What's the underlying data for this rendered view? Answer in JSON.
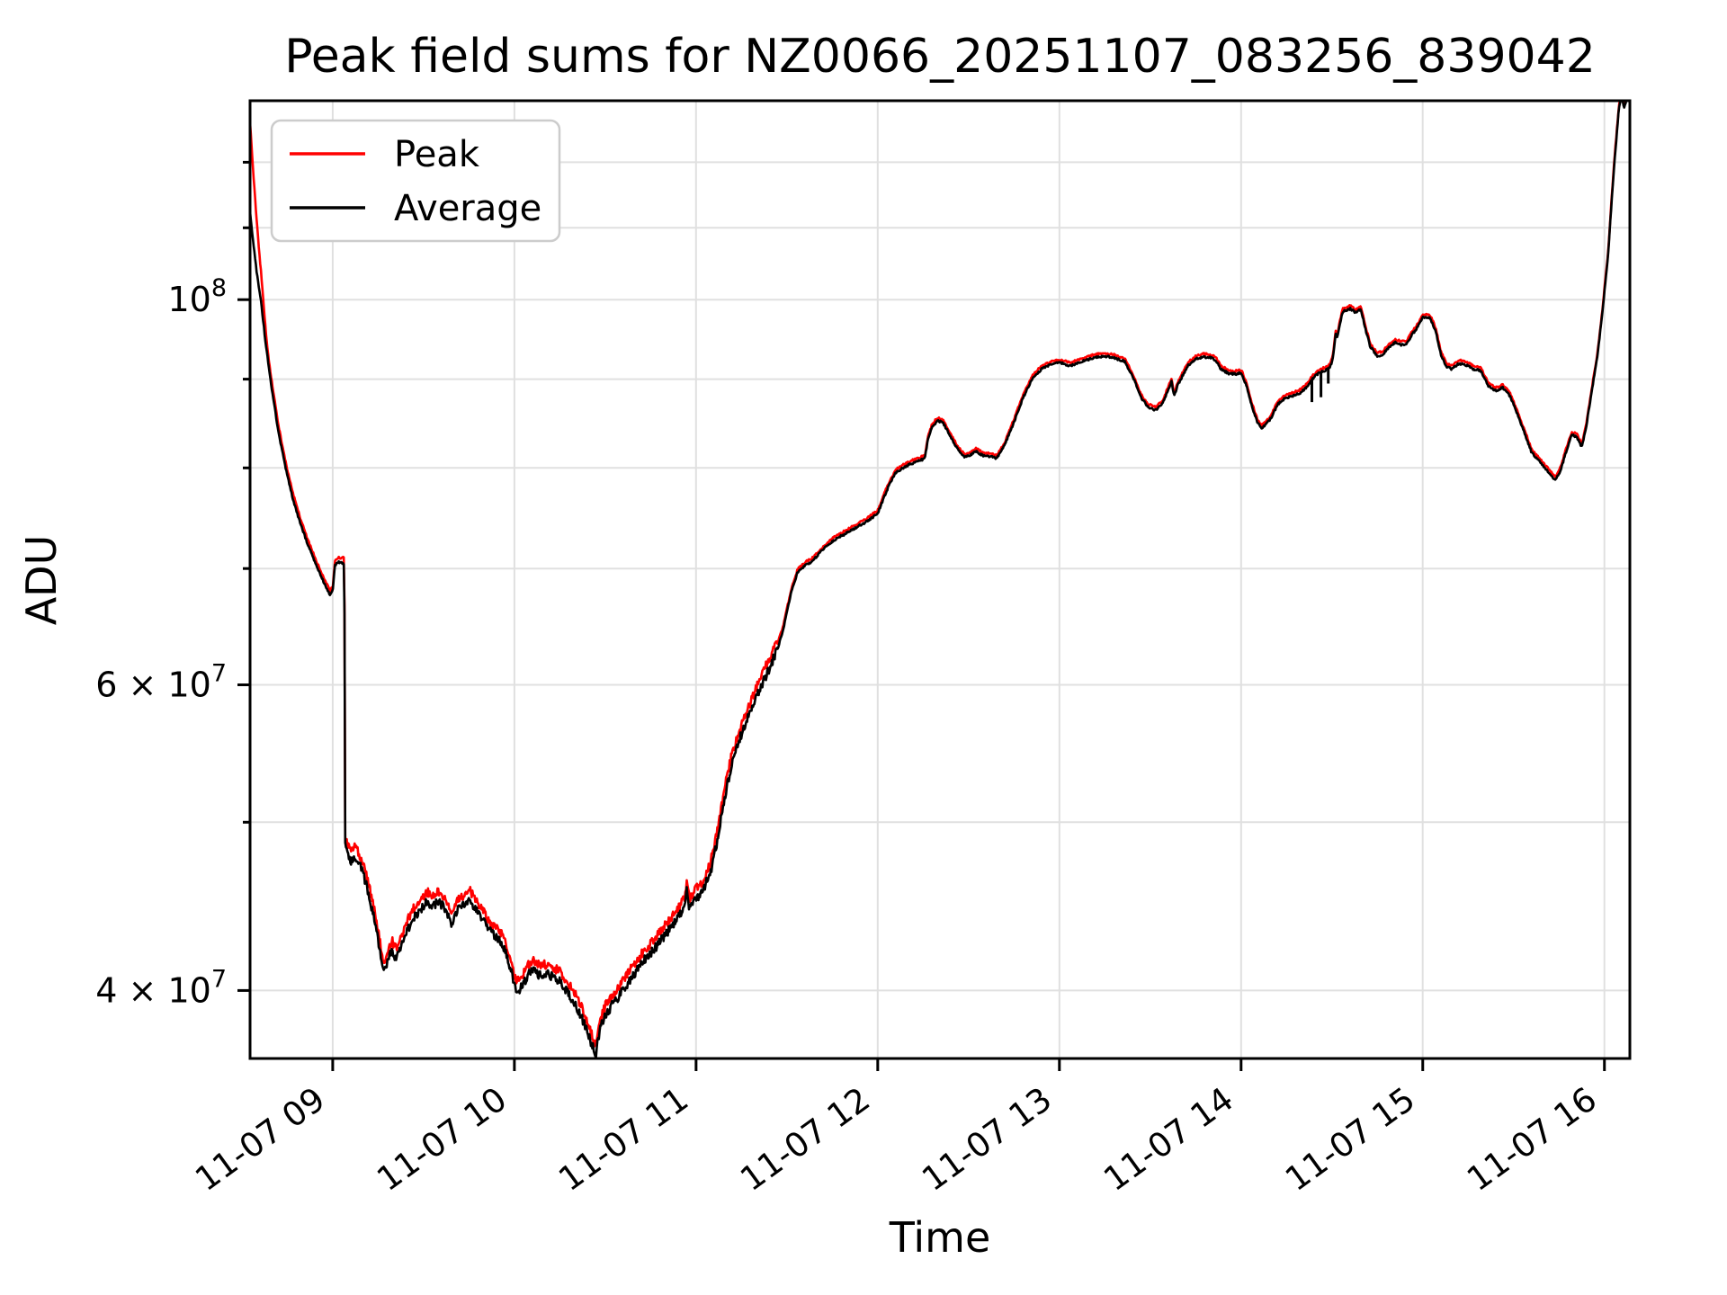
{
  "title": "Peak field sums for NZ0066_20251107_083256_839042",
  "xlabel": "Time",
  "ylabel": "ADU",
  "legend": {
    "items": [
      {
        "label": "Peak",
        "color": "#ff0000"
      },
      {
        "label": "Average",
        "color": "#000000"
      }
    ]
  },
  "colors": {
    "background": "#ffffff",
    "grid": "#e0e0e0",
    "spine": "#000000",
    "legend_border": "#cccccc",
    "peak_line": "#ff0000",
    "average_line": "#000000"
  },
  "chart_data": {
    "type": "line",
    "title": "Peak field sums for NZ0066_20251107_083256_839042",
    "xlabel": "Time",
    "ylabel": "ADU",
    "yscale": "log",
    "grid": true,
    "legend_position": "upper-left",
    "ylim": [
      36550000.0,
      130200000.0
    ],
    "xlim_hours": [
      8.545,
      16.14
    ],
    "value_unit": 10000000.0,
    "sample_step_hours": 0.004,
    "x_ticks": [
      {
        "hour": 9,
        "label": "11-07 09"
      },
      {
        "hour": 10,
        "label": "11-07 10"
      },
      {
        "hour": 11,
        "label": "11-07 11"
      },
      {
        "hour": 12,
        "label": "11-07 12"
      },
      {
        "hour": 13,
        "label": "11-07 13"
      },
      {
        "hour": 14,
        "label": "11-07 14"
      },
      {
        "hour": 15,
        "label": "11-07 15"
      },
      {
        "hour": 16,
        "label": "11-07 16"
      }
    ],
    "y_ticks": [
      {
        "value": 40000000.0,
        "labeled": true,
        "base": "4 × 10",
        "exp": "7"
      },
      {
        "value": 50000000.0,
        "labeled": false
      },
      {
        "value": 60000000.0,
        "labeled": true,
        "base": "6 × 10",
        "exp": "7"
      },
      {
        "value": 70000000.0,
        "labeled": false
      },
      {
        "value": 80000000.0,
        "labeled": false
      },
      {
        "value": 90000000.0,
        "labeled": false
      },
      {
        "value": 100000000.0,
        "labeled": true,
        "base": "10",
        "exp": "8"
      },
      {
        "value": 110000000.0,
        "labeled": false
      },
      {
        "value": 120000000.0,
        "labeled": false
      }
    ],
    "noise": {
      "window": [
        9.068,
        11.45
      ],
      "amp_in_window": 0.006,
      "amp_base": 0.0014
    },
    "series": [
      {
        "name": "Peak",
        "color": "#ff0000",
        "derived": "average_times_factor",
        "factor_table": [
          [
            8.545,
            1.125
          ],
          [
            8.595,
            1.05
          ],
          [
            8.64,
            1.01
          ],
          [
            8.9,
            1.006
          ],
          [
            9.05,
            1.006
          ],
          [
            9.075,
            1.013
          ],
          [
            11.4,
            1.013
          ],
          [
            11.5,
            1.004
          ],
          [
            16.2,
            1.004
          ]
        ]
      },
      {
        "name": "Average",
        "color": "#000000",
        "points": [
          [
            8.545,
            11.25
          ],
          [
            8.56,
            10.85
          ],
          [
            8.58,
            10.4
          ],
          [
            8.604,
            10.0
          ],
          [
            8.63,
            9.45
          ],
          [
            8.66,
            8.95
          ],
          [
            8.7,
            8.4
          ],
          [
            8.74,
            8.0
          ],
          [
            8.78,
            7.68
          ],
          [
            8.82,
            7.44
          ],
          [
            8.86,
            7.24
          ],
          [
            8.9,
            7.07
          ],
          [
            8.93,
            6.95
          ],
          [
            8.96,
            6.84
          ],
          [
            8.985,
            6.76
          ],
          [
            9.0,
            6.79
          ],
          [
            9.012,
            7.03
          ],
          [
            9.03,
            7.06
          ],
          [
            9.055,
            7.05
          ],
          [
            9.064,
            7.04
          ],
          [
            9.069,
            4.84
          ],
          [
            9.08,
            4.79
          ],
          [
            9.1,
            4.75
          ],
          [
            9.12,
            4.78
          ],
          [
            9.14,
            4.74
          ],
          [
            9.16,
            4.7
          ],
          [
            9.19,
            4.58
          ],
          [
            9.22,
            4.44
          ],
          [
            9.25,
            4.27
          ],
          [
            9.28,
            4.09
          ],
          [
            9.3,
            4.14
          ],
          [
            9.325,
            4.22
          ],
          [
            9.35,
            4.17
          ],
          [
            9.38,
            4.25
          ],
          [
            9.41,
            4.33
          ],
          [
            9.45,
            4.41
          ],
          [
            9.49,
            4.46
          ],
          [
            9.52,
            4.5
          ],
          [
            9.55,
            4.47
          ],
          [
            9.58,
            4.5
          ],
          [
            9.61,
            4.47
          ],
          [
            9.63,
            4.44
          ],
          [
            9.655,
            4.37
          ],
          [
            9.68,
            4.44
          ],
          [
            9.71,
            4.47
          ],
          [
            9.75,
            4.52
          ],
          [
            9.78,
            4.47
          ],
          [
            9.82,
            4.4
          ],
          [
            9.86,
            4.33
          ],
          [
            9.9,
            4.29
          ],
          [
            9.94,
            4.24
          ],
          [
            9.98,
            4.12
          ],
          [
            10.01,
            3.99
          ],
          [
            10.04,
            4.02
          ],
          [
            10.08,
            4.09
          ],
          [
            10.11,
            4.11
          ],
          [
            10.14,
            4.08
          ],
          [
            10.18,
            4.09
          ],
          [
            10.22,
            4.07
          ],
          [
            10.26,
            4.04
          ],
          [
            10.3,
            3.98
          ],
          [
            10.34,
            3.92
          ],
          [
            10.38,
            3.84
          ],
          [
            10.42,
            3.74
          ],
          [
            10.448,
            3.67
          ],
          [
            10.47,
            3.8
          ],
          [
            10.5,
            3.87
          ],
          [
            10.55,
            3.94
          ],
          [
            10.6,
            4.0
          ],
          [
            10.66,
            4.09
          ],
          [
            10.72,
            4.17
          ],
          [
            10.78,
            4.24
          ],
          [
            10.84,
            4.32
          ],
          [
            10.9,
            4.4
          ],
          [
            10.936,
            4.46
          ],
          [
            10.95,
            4.57
          ],
          [
            10.963,
            4.46
          ],
          [
            11.0,
            4.52
          ],
          [
            11.04,
            4.57
          ],
          [
            11.08,
            4.68
          ],
          [
            11.12,
            4.9
          ],
          [
            11.16,
            5.18
          ],
          [
            11.2,
            5.42
          ],
          [
            11.25,
            5.62
          ],
          [
            11.3,
            5.79
          ],
          [
            11.35,
            5.96
          ],
          [
            11.4,
            6.12
          ],
          [
            11.45,
            6.3
          ],
          [
            11.48,
            6.45
          ],
          [
            11.52,
            6.76
          ],
          [
            11.56,
            6.97
          ],
          [
            11.6,
            7.03
          ],
          [
            11.64,
            7.07
          ],
          [
            11.7,
            7.18
          ],
          [
            11.76,
            7.27
          ],
          [
            11.82,
            7.33
          ],
          [
            11.88,
            7.39
          ],
          [
            11.93,
            7.44
          ],
          [
            12.0,
            7.53
          ],
          [
            12.04,
            7.72
          ],
          [
            12.07,
            7.85
          ],
          [
            12.1,
            7.95
          ],
          [
            12.14,
            8.0
          ],
          [
            12.18,
            8.04
          ],
          [
            12.22,
            8.07
          ],
          [
            12.26,
            8.1
          ],
          [
            12.275,
            8.3
          ],
          [
            12.3,
            8.45
          ],
          [
            12.33,
            8.52
          ],
          [
            12.36,
            8.49
          ],
          [
            12.4,
            8.34
          ],
          [
            12.44,
            8.2
          ],
          [
            12.48,
            8.11
          ],
          [
            12.51,
            8.14
          ],
          [
            12.54,
            8.18
          ],
          [
            12.58,
            8.13
          ],
          [
            12.62,
            8.12
          ],
          [
            12.655,
            8.1
          ],
          [
            12.7,
            8.25
          ],
          [
            12.75,
            8.5
          ],
          [
            12.8,
            8.78
          ],
          [
            12.85,
            9.0
          ],
          [
            12.9,
            9.12
          ],
          [
            12.95,
            9.17
          ],
          [
            13.0,
            9.2
          ],
          [
            13.06,
            9.16
          ],
          [
            13.12,
            9.21
          ],
          [
            13.18,
            9.25
          ],
          [
            13.24,
            9.28
          ],
          [
            13.3,
            9.26
          ],
          [
            13.36,
            9.21
          ],
          [
            13.41,
            9.0
          ],
          [
            13.45,
            8.78
          ],
          [
            13.49,
            8.67
          ],
          [
            13.53,
            8.64
          ],
          [
            13.57,
            8.72
          ],
          [
            13.6,
            8.88
          ],
          [
            13.617,
            8.97
          ],
          [
            13.632,
            8.8
          ],
          [
            13.65,
            8.92
          ],
          [
            13.68,
            9.05
          ],
          [
            13.71,
            9.17
          ],
          [
            13.75,
            9.24
          ],
          [
            13.79,
            9.27
          ],
          [
            13.83,
            9.26
          ],
          [
            13.86,
            9.23
          ],
          [
            13.89,
            9.12
          ],
          [
            13.93,
            9.07
          ],
          [
            13.97,
            9.06
          ],
          [
            14.0,
            9.08
          ],
          [
            14.03,
            8.92
          ],
          [
            14.06,
            8.68
          ],
          [
            14.09,
            8.5
          ],
          [
            14.115,
            8.43
          ],
          [
            14.14,
            8.48
          ],
          [
            14.17,
            8.56
          ],
          [
            14.2,
            8.7
          ],
          [
            14.24,
            8.77
          ],
          [
            14.28,
            8.8
          ],
          [
            14.32,
            8.83
          ],
          [
            14.35,
            8.88
          ],
          [
            14.37,
            8.93
          ],
          [
            14.4,
            9.02
          ],
          [
            14.43,
            9.08
          ],
          [
            14.46,
            9.1
          ],
          [
            14.49,
            9.14
          ],
          [
            14.505,
            9.25
          ],
          [
            14.52,
            9.55
          ],
          [
            14.53,
            9.5
          ],
          [
            14.545,
            9.7
          ],
          [
            14.56,
            9.84
          ],
          [
            14.6,
            9.88
          ],
          [
            14.63,
            9.83
          ],
          [
            14.66,
            9.87
          ],
          [
            14.68,
            9.66
          ],
          [
            14.71,
            9.4
          ],
          [
            14.75,
            9.28
          ],
          [
            14.78,
            9.3
          ],
          [
            14.81,
            9.38
          ],
          [
            14.85,
            9.45
          ],
          [
            14.88,
            9.42
          ],
          [
            14.91,
            9.43
          ],
          [
            14.94,
            9.54
          ],
          [
            14.97,
            9.64
          ],
          [
            15.0,
            9.77
          ],
          [
            15.04,
            9.76
          ],
          [
            15.07,
            9.6
          ],
          [
            15.1,
            9.3
          ],
          [
            15.13,
            9.15
          ],
          [
            15.16,
            9.12
          ],
          [
            15.2,
            9.19
          ],
          [
            15.24,
            9.17
          ],
          [
            15.28,
            9.12
          ],
          [
            15.32,
            9.1
          ],
          [
            15.36,
            8.92
          ],
          [
            15.4,
            8.86
          ],
          [
            15.44,
            8.9
          ],
          [
            15.48,
            8.8
          ],
          [
            15.52,
            8.6
          ],
          [
            15.56,
            8.38
          ],
          [
            15.6,
            8.16
          ],
          [
            15.65,
            8.05
          ],
          [
            15.7,
            7.94
          ],
          [
            15.73,
            7.87
          ],
          [
            15.76,
            7.98
          ],
          [
            15.79,
            8.18
          ],
          [
            15.82,
            8.36
          ],
          [
            15.85,
            8.33
          ],
          [
            15.875,
            8.22
          ],
          [
            15.9,
            8.45
          ],
          [
            15.93,
            8.85
          ],
          [
            15.96,
            9.25
          ],
          [
            15.99,
            9.85
          ],
          [
            16.02,
            10.6
          ],
          [
            16.05,
            11.8
          ],
          [
            16.08,
            12.9
          ],
          [
            16.095,
            13.1
          ],
          [
            16.11,
            12.88
          ],
          [
            16.125,
            13.12
          ],
          [
            16.14,
            13.5
          ]
        ],
        "glitch_spikes": [
          {
            "t": 14.39,
            "drop": 0.26
          },
          {
            "t": 14.44,
            "drop": 0.3
          },
          {
            "t": 14.48,
            "drop": 0.18
          }
        ]
      }
    ]
  }
}
